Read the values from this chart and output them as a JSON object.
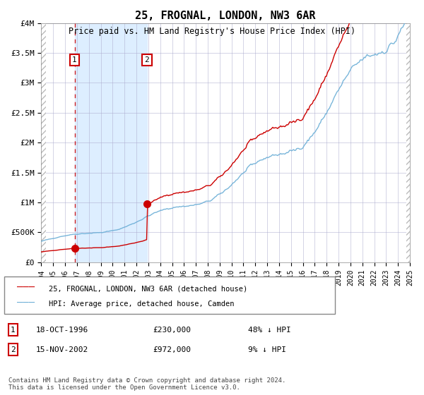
{
  "title": "25, FROGNAL, LONDON, NW3 6AR",
  "subtitle": "Price paid vs. HM Land Registry's House Price Index (HPI)",
  "sale1_date": "18-OCT-1996",
  "sale1_price": 230000,
  "sale1_hpi_diff": "48% ↓ HPI",
  "sale1_year": 1996.8,
  "sale2_date": "15-NOV-2002",
  "sale2_price": 972000,
  "sale2_hpi_diff": "9% ↓ HPI",
  "sale2_year": 2002.88,
  "hpi_color": "#6baed6",
  "price_color": "#cc0000",
  "vline_color": "#cc0000",
  "shade_color": "#ddeeff",
  "grid_color": "#aaaacc",
  "bg_color": "#ffffff",
  "ylabel_ticks": [
    "£0",
    "£500K",
    "£1M",
    "£1.5M",
    "£2M",
    "£2.5M",
    "£3M",
    "£3.5M",
    "£4M"
  ],
  "ytick_vals": [
    0,
    500000,
    1000000,
    1500000,
    2000000,
    2500000,
    3000000,
    3500000,
    4000000
  ],
  "xmin": 1994,
  "xmax": 2025,
  "ymin": 0,
  "ymax": 4000000,
  "legend_label1": "25, FROGNAL, LONDON, NW3 6AR (detached house)",
  "legend_label2": "HPI: Average price, detached house, Camden",
  "footnote": "Contains HM Land Registry data © Crown copyright and database right 2024.\nThis data is licensed under the Open Government Licence v3.0.",
  "hatch_color": "#bbbbbb"
}
